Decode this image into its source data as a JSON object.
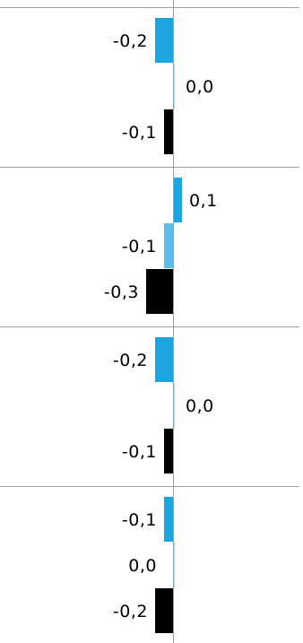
{
  "chart_data": {
    "type": "bar",
    "orientation": "horizontal",
    "title": "",
    "xlabel": "",
    "ylabel": "",
    "grid": false,
    "legend": "none",
    "colors": {
      "series_1": "#1ba6e0",
      "series_2": "#5bbde9",
      "series_3": "#000000",
      "divider": "#a0a0a0",
      "axis": "#a0a0a0"
    },
    "groups": [
      {
        "bars": [
          {
            "series": 1,
            "value": -0.2,
            "label": "-0,2"
          },
          {
            "series": 2,
            "value": 0.0,
            "label": "0,0"
          },
          {
            "series": 3,
            "value": -0.1,
            "label": "-0,1"
          }
        ]
      },
      {
        "bars": [
          {
            "series": 1,
            "value": 0.1,
            "label": "0,1"
          },
          {
            "series": 2,
            "value": -0.1,
            "label": "-0,1"
          },
          {
            "series": 3,
            "value": -0.3,
            "label": "-0,3"
          }
        ]
      },
      {
        "bars": [
          {
            "series": 1,
            "value": -0.2,
            "label": "-0,2"
          },
          {
            "series": 2,
            "value": 0.0,
            "label": "0,0"
          },
          {
            "series": 3,
            "value": -0.1,
            "label": "-0,1"
          }
        ]
      },
      {
        "bars": [
          {
            "series": 1,
            "value": -0.1,
            "label": "-0,1"
          },
          {
            "series": 2,
            "value": 0.0,
            "label": "0,0"
          },
          {
            "series": 3,
            "value": -0.2,
            "label": "-0,2"
          }
        ]
      }
    ]
  }
}
